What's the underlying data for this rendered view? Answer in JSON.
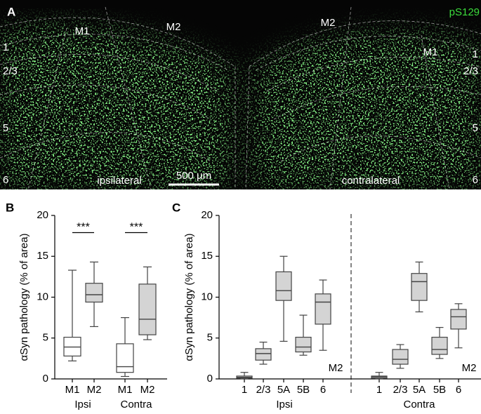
{
  "panel_a": {
    "label": "A",
    "stain": "pS129",
    "regions": [
      "M1",
      "M2",
      "M2",
      "M1"
    ],
    "layers_left": [
      "1",
      "2/3",
      "5",
      "6"
    ],
    "layers_right": [
      "1",
      "2/3",
      "5",
      "6"
    ],
    "side_left": "ipsilateral",
    "side_right": "contralateral",
    "scale_bar": "500 µm"
  },
  "chart_data": [
    {
      "type": "box",
      "panel_label": "B",
      "ylabel": "αSyn pathology (% of area)",
      "ylim": [
        0,
        20
      ],
      "yticks": [
        0,
        5,
        10,
        15,
        20
      ],
      "categories": [
        "M1",
        "M2",
        "M1",
        "M2"
      ],
      "groups": [
        "Ipsi",
        "Contra"
      ],
      "annotations": [
        "***",
        "***"
      ],
      "boxes": [
        {
          "min": 2.2,
          "q1": 2.8,
          "median": 3.9,
          "q3": 5.1,
          "max": 13.3,
          "color": "#ffffff"
        },
        {
          "min": 6.4,
          "q1": 9.4,
          "median": 10.3,
          "q3": 11.7,
          "max": 14.3,
          "color": "#d4d4d4"
        },
        {
          "min": 0.3,
          "q1": 0.8,
          "median": 1.5,
          "q3": 4.3,
          "max": 7.5,
          "color": "#ffffff"
        },
        {
          "min": 4.8,
          "q1": 5.4,
          "median": 7.3,
          "q3": 11.6,
          "max": 13.7,
          "color": "#d4d4d4"
        }
      ]
    },
    {
      "type": "box",
      "panel_label": "C",
      "ylabel": "αSyn pathology (% of area)",
      "ylim": [
        0,
        20
      ],
      "yticks": [
        0,
        5,
        10,
        15,
        20
      ],
      "categories": [
        "1",
        "2/3",
        "5A",
        "5B",
        "6",
        "1",
        "2/3",
        "5A",
        "5B",
        "6"
      ],
      "groups": [
        "Ipsi",
        "Contra"
      ],
      "annotations": [
        "M2",
        "M2"
      ],
      "boxes": [
        {
          "min": 0,
          "q1": 0.1,
          "median": 0.2,
          "q3": 0.35,
          "max": 0.8,
          "color": "#d4d4d4"
        },
        {
          "min": 1.8,
          "q1": 2.3,
          "median": 3.1,
          "q3": 3.7,
          "max": 4.5,
          "color": "#d4d4d4"
        },
        {
          "min": 4.6,
          "q1": 9.6,
          "median": 10.8,
          "q3": 13.1,
          "max": 15.0,
          "color": "#d4d4d4"
        },
        {
          "min": 2.9,
          "q1": 3.3,
          "median": 3.9,
          "q3": 5.1,
          "max": 7.8,
          "color": "#d4d4d4"
        },
        {
          "min": 3.5,
          "q1": 6.7,
          "median": 9.4,
          "q3": 10.4,
          "max": 12.1,
          "color": "#d4d4d4"
        },
        {
          "min": 0,
          "q1": 0.1,
          "median": 0.25,
          "q3": 0.35,
          "max": 0.8,
          "color": "#d4d4d4"
        },
        {
          "min": 1.3,
          "q1": 1.8,
          "median": 2.4,
          "q3": 3.6,
          "max": 4.2,
          "color": "#d4d4d4"
        },
        {
          "min": 8.2,
          "q1": 9.6,
          "median": 11.9,
          "q3": 12.9,
          "max": 14.3,
          "color": "#d4d4d4"
        },
        {
          "min": 2.5,
          "q1": 3.0,
          "median": 3.6,
          "q3": 5.1,
          "max": 6.3,
          "color": "#d4d4d4"
        },
        {
          "min": 3.8,
          "q1": 6.1,
          "median": 7.6,
          "q3": 8.5,
          "max": 9.2,
          "color": "#d4d4d4"
        }
      ]
    }
  ]
}
